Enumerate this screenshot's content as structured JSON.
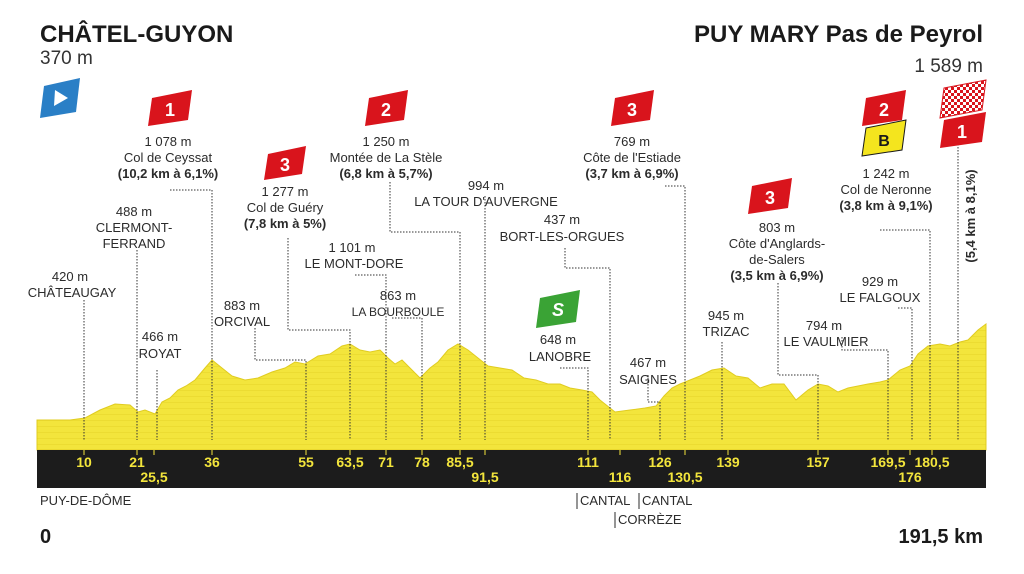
{
  "start": {
    "name": "CHÂTEL-GUYON",
    "altitude": "370 m",
    "km": "0",
    "department": "PUY-DE-DÔME"
  },
  "finish": {
    "name": "PUY MARY Pas de Peyrol",
    "altitude": "1 589 m",
    "km": "191,5 km"
  },
  "department_borders": [
    {
      "left": "CANTAL",
      "right": "CANTAL"
    },
    {
      "right": "CORRÈZE"
    }
  ],
  "km_markers": [
    "10",
    "21",
    "25,5",
    "36",
    "55",
    "63,5",
    "71",
    "78",
    "85,5",
    "91,5",
    "111",
    "116",
    "126",
    "130,5",
    "139",
    "157",
    "169,5",
    "176",
    "180,5"
  ],
  "climbs": [
    {
      "category": "1",
      "altitude": "1 078 m",
      "name": "Col de Ceyssat",
      "detail": "(10,2 km à 6,1%)"
    },
    {
      "category": "3",
      "altitude": "1 277 m",
      "name": "Col de Guéry",
      "detail": "(7,8 km à 5%)"
    },
    {
      "category": "2",
      "altitude": "1 250 m",
      "name": "Montée de La Stèle",
      "detail": "(6,8 km à 5,7%)"
    },
    {
      "category": "3",
      "altitude": "769 m",
      "name": "Côte de l'Estiade",
      "detail": "(3,7 km à 6,9%)"
    },
    {
      "category": "3",
      "altitude": "803 m",
      "name": "Côte d'Anglards-",
      "name2": "de-Salers",
      "detail": "(3,5 km à 6,9%)"
    },
    {
      "category": "2",
      "altitude": "1 242 m",
      "name": "Col de Neronne",
      "detail": "(3,8 km à 9,1%)",
      "bonus": "B"
    },
    {
      "category": "1",
      "detail": "(5,4 km à 8,1%)"
    }
  ],
  "sprint": {
    "label": "S",
    "altitude": "648 m",
    "name": "LANOBRE"
  },
  "places": [
    {
      "altitude": "420 m",
      "name": "CHÂTEAUGAY"
    },
    {
      "altitude": "488 m",
      "name": "CLERMONT-",
      "name2": "FERRAND"
    },
    {
      "altitude": "466 m",
      "name": "ROYAT"
    },
    {
      "altitude": "883 m",
      "name": "ORCIVAL"
    },
    {
      "altitude": "1 101 m",
      "name": "LE MONT-DORE"
    },
    {
      "altitude": "863 m",
      "name": "LA BOURBOULE"
    },
    {
      "altitude": "994 m",
      "name": "LA TOUR D'AUVERGNE"
    },
    {
      "altitude": "437 m",
      "name": "BORT-LES-ORGUES"
    },
    {
      "altitude": "467 m",
      "name": "SAIGNES"
    },
    {
      "altitude": "945 m",
      "name": "TRIZAC"
    },
    {
      "altitude": "794 m",
      "name": "LE VAULMIER"
    },
    {
      "altitude": "929 m",
      "name": "LE FALGOUX"
    }
  ],
  "colors": {
    "profile": "#f3e53c",
    "profile_dark": "#e2cf1f",
    "band": "#1c1c1c",
    "km_text": "#f3e53c",
    "red": "#d9141c",
    "green": "#3aa335",
    "blue": "#2a7fc6",
    "yellow": "#f4e51e"
  }
}
